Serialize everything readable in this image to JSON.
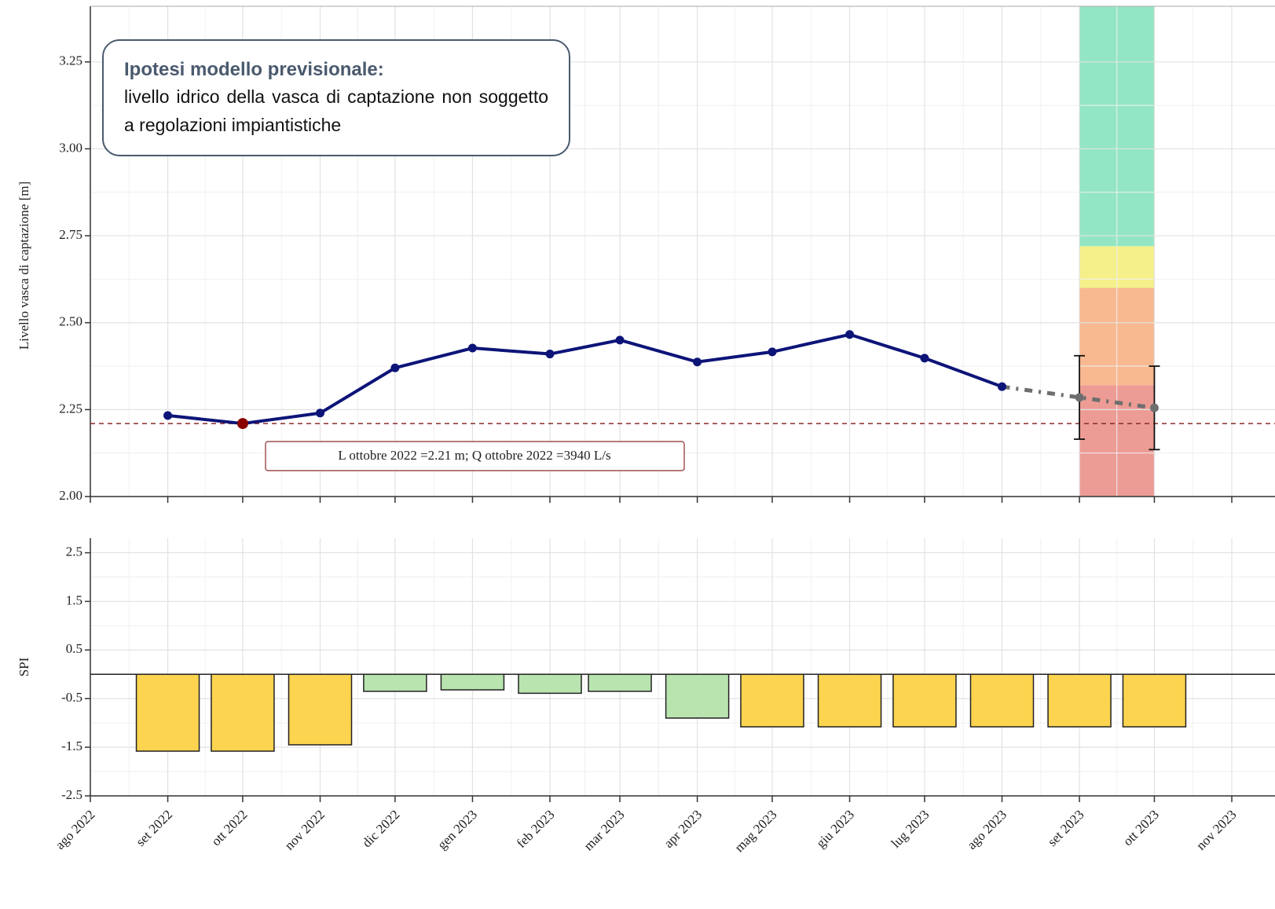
{
  "chart_data": [
    {
      "type": "line",
      "ylabel": "Livello vasca di captazione [m]",
      "x": [
        "2022-09",
        "2022-10",
        "2022-11",
        "2022-12",
        "2023-01",
        "2023-02",
        "2023-03",
        "2023-04",
        "2023-05",
        "2023-06",
        "2023-07",
        "2023-08",
        "2023-09",
        "2023-10"
      ],
      "series": [
        {
          "color": "#0d1478",
          "values": [
            2.233,
            2.21,
            2.24,
            2.37,
            2.427,
            2.41,
            2.45,
            2.387,
            2.416,
            2.466,
            2.398,
            2.316,
            null,
            null
          ]
        },
        {
          "color": "#6e6e6e",
          "style": "dotted",
          "values": [
            null,
            null,
            null,
            null,
            null,
            null,
            null,
            null,
            null,
            null,
            null,
            2.316,
            2.285,
            2.255
          ],
          "error": [
            null,
            null,
            null,
            null,
            null,
            null,
            null,
            null,
            null,
            null,
            null,
            null,
            0.12,
            0.12
          ]
        }
      ],
      "highlight": {
        "x": "2022-10",
        "color": "#8b0000"
      },
      "hline": {
        "value": 2.21,
        "color": "#8b2a2a"
      },
      "annotation": "L ottobre 2022 =2.21 m; Q ottobre 2022 =3940 L/s",
      "note": {
        "title": "Ipotesi modello previsionale:",
        "text": "livello idrico della vasca di captazione non soggetto a regolazioni impiantistiche"
      },
      "bands": {
        "x": [
          "2023-09",
          "2023-10"
        ],
        "ranges": [
          {
            "from": 2.0,
            "to": 2.32,
            "color": "#ec9c94"
          },
          {
            "from": 2.32,
            "to": 2.6,
            "color": "#f8b890"
          },
          {
            "from": 2.6,
            "to": 2.72,
            "color": "#f5f08a"
          },
          {
            "from": 2.72,
            "to": 3.41,
            "color": "#93e6c4"
          }
        ]
      },
      "xlim": [
        "2022-08",
        "2023-11"
      ],
      "ylim": [
        2.0,
        3.41
      ],
      "yticks": [
        {
          "value": 2.0,
          "label": "2.00"
        },
        2.25,
        {
          "value": 2.5,
          "label": "2.50"
        },
        2.75,
        {
          "value": 3.0,
          "label": "3.00"
        },
        3.25
      ],
      "grid": true
    },
    {
      "type": "bar",
      "ylabel": "SPI",
      "x": [
        "2022-09",
        "2022-10",
        "2022-11",
        "2022-12",
        "2023-01",
        "2023-02",
        "2023-03",
        "2023-04",
        "2023-05",
        "2023-06",
        "2023-07",
        "2023-08",
        "2023-09",
        "2023-10"
      ],
      "values": [
        -1.58,
        -1.58,
        -1.45,
        -0.35,
        -0.32,
        -0.39,
        -0.35,
        -0.9,
        -1.08,
        -1.08,
        -1.08,
        -1.08,
        -1.08,
        -1.08
      ],
      "colors": [
        "#fdd44f",
        "#fdd44f",
        "#fdd44f",
        "#b9e4b0",
        "#b9e4b0",
        "#b9e4b0",
        "#b9e4b0",
        "#b9e4b0",
        "#fdd44f",
        "#fdd44f",
        "#fdd44f",
        "#fdd44f",
        "#fdd44f",
        "#fdd44f"
      ],
      "xlim": [
        "2022-08",
        "2023-11"
      ],
      "ylim": [
        -2.5,
        2.8
      ],
      "yticks": [
        2.5,
        1.5,
        0.5,
        -0.5,
        -1.5,
        -2.5
      ],
      "xticks": [
        {
          "value": "2022-08",
          "label": "ago 2022"
        },
        {
          "value": "2022-09",
          "label": "set 2022"
        },
        {
          "value": "2022-10",
          "label": "ott 2022"
        },
        {
          "value": "2022-11",
          "label": "nov 2022"
        },
        {
          "value": "2022-12",
          "label": "dic 2022"
        },
        {
          "value": "2023-01",
          "label": "gen 2023"
        },
        {
          "value": "2023-02",
          "label": "feb 2023"
        },
        {
          "value": "2023-03",
          "label": "mar 2023"
        },
        {
          "value": "2023-04",
          "label": "apr 2023"
        },
        {
          "value": "2023-05",
          "label": "mag 2023"
        },
        {
          "value": "2023-06",
          "label": "giu 2023"
        },
        {
          "value": "2023-07",
          "label": "lug 2023"
        },
        {
          "value": "2023-08",
          "label": "ago 2023"
        },
        {
          "value": "2023-09",
          "label": "set 2023"
        },
        {
          "value": "2023-10",
          "label": "ott 2023"
        },
        {
          "value": "2023-11",
          "label": "nov 2023"
        }
      ],
      "grid": true
    }
  ]
}
